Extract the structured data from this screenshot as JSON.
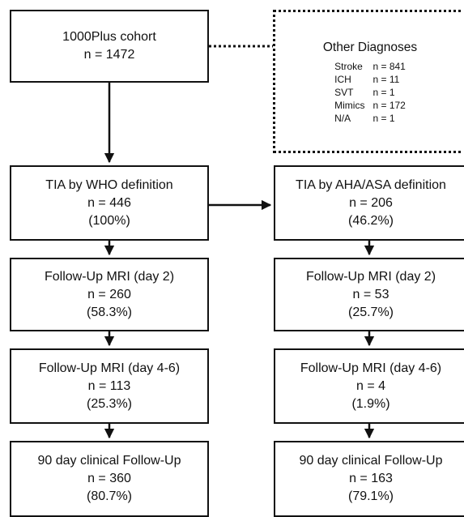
{
  "cohort": {
    "title": "1000Plus cohort",
    "n": "n = 1472"
  },
  "other_diagnoses": {
    "title": "Other Diagnoses",
    "rows": [
      {
        "label": "Stroke",
        "value": "n = 841"
      },
      {
        "label": "ICH",
        "value": "n = 11"
      },
      {
        "label": "SVT",
        "value": "n = 1"
      },
      {
        "label": "Mimics",
        "value": "n = 172"
      },
      {
        "label": "N/A",
        "value": "n = 1"
      }
    ]
  },
  "left": [
    {
      "title": "TIA by WHO definition",
      "n": "n = 446",
      "pct": "(100%)"
    },
    {
      "title": "Follow-Up MRI (day 2)",
      "n": "n = 260",
      "pct": "(58.3%)"
    },
    {
      "title": "Follow-Up MRI (day 4-6)",
      "n": "n = 113",
      "pct": "(25.3%)"
    },
    {
      "title": "90 day clinical Follow-Up",
      "n": "n = 360",
      "pct": "(80.7%)"
    }
  ],
  "right": [
    {
      "title": "TIA by AHA/ASA definition",
      "n": "n = 206",
      "pct": "(46.2%)"
    },
    {
      "title": "Follow-Up MRI (day 2)",
      "n": "n = 53",
      "pct": "(25.7%)"
    },
    {
      "title": "Follow-Up MRI (day 4-6)",
      "n": "n = 4",
      "pct": "(1.9%)"
    },
    {
      "title": "90 day clinical Follow-Up",
      "n": "n = 163",
      "pct": "(79.1%)"
    }
  ]
}
